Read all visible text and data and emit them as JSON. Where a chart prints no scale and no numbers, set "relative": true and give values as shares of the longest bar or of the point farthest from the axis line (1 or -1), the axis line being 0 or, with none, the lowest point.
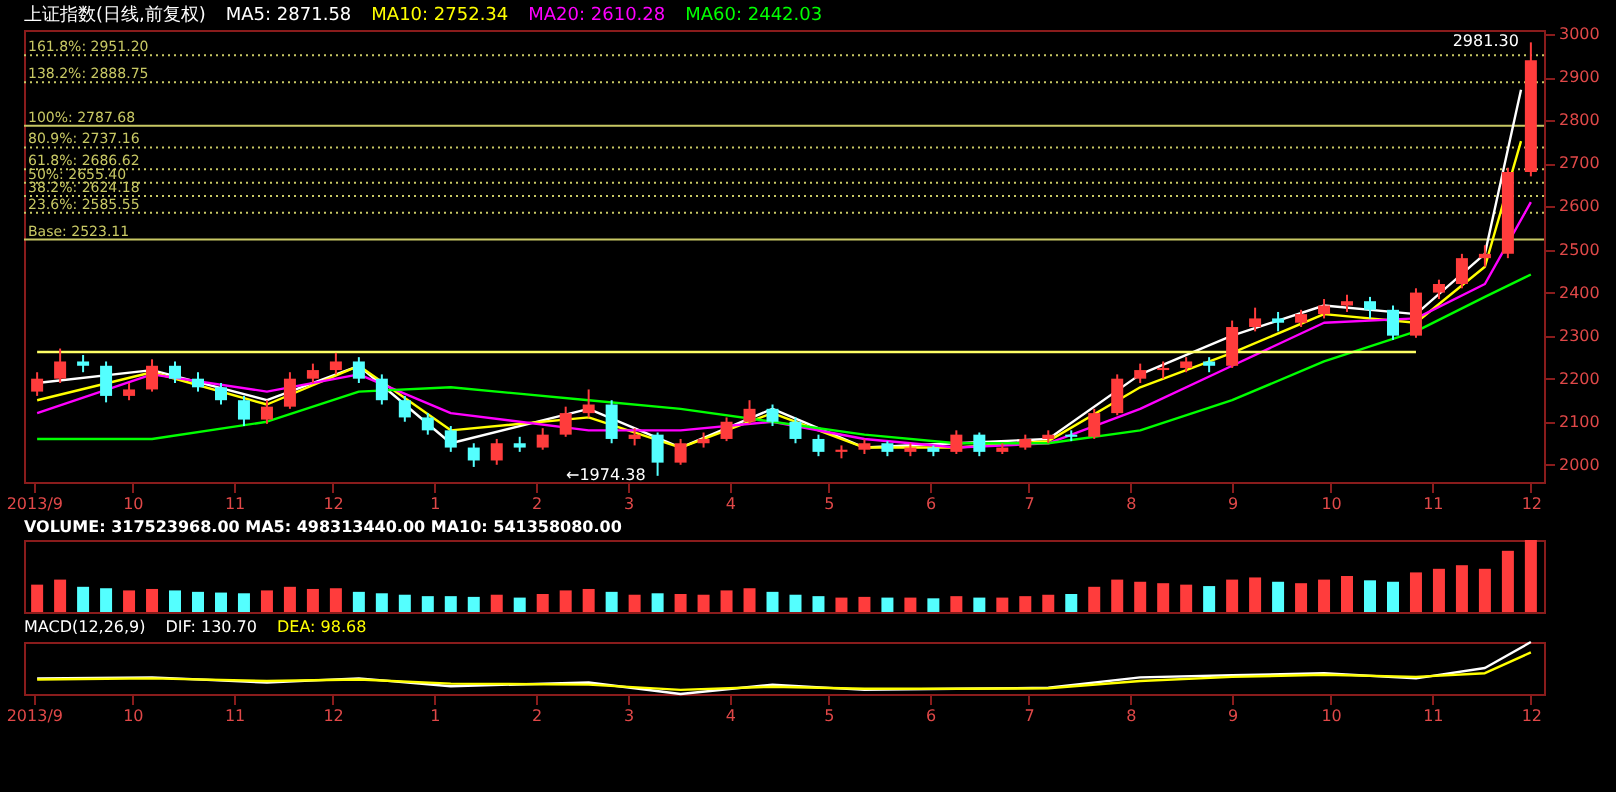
{
  "chart_data": [
    {
      "type": "candlestick",
      "title": "上证指数(日线,前复权)",
      "xlim": [
        "2013-08-29",
        "2014-12-05"
      ],
      "ylim": [
        1960,
        3010
      ],
      "yticks": [
        2000,
        2100,
        2200,
        2300,
        2400,
        2500,
        2600,
        2700,
        2800,
        2900,
        3000
      ],
      "xticks": [
        {
          "value": "2013-09-01",
          "label": "2013/9"
        },
        {
          "value": "2013-10-01",
          "label": "10"
        },
        {
          "value": "2013-11-01",
          "label": "11"
        },
        {
          "value": "2013-12-01",
          "label": "12"
        },
        {
          "value": "2014-01-01",
          "label": "1"
        },
        {
          "value": "2014-02-01",
          "label": "2"
        },
        {
          "value": "2014-03-01",
          "label": "3"
        },
        {
          "value": "2014-04-01",
          "label": "4"
        },
        {
          "value": "2014-05-01",
          "label": "5"
        },
        {
          "value": "2014-06-01",
          "label": "6"
        },
        {
          "value": "2014-07-01",
          "label": "7"
        },
        {
          "value": "2014-08-01",
          "label": "8"
        },
        {
          "value": "2014-09-01",
          "label": "9"
        },
        {
          "value": "2014-10-01",
          "label": "10"
        },
        {
          "value": "2014-11-01",
          "label": "11"
        },
        {
          "value": "2014-12-01",
          "label": "12"
        }
      ],
      "x": [
        "2013-09-02",
        "2013-09-09",
        "2013-09-16",
        "2013-09-23",
        "2013-09-30",
        "2013-10-07",
        "2013-10-14",
        "2013-10-21",
        "2013-10-28",
        "2013-11-04",
        "2013-11-11",
        "2013-11-18",
        "2013-11-25",
        "2013-12-02",
        "2013-12-09",
        "2013-12-16",
        "2013-12-23",
        "2013-12-30",
        "2014-01-06",
        "2014-01-13",
        "2014-01-20",
        "2014-01-27",
        "2014-02-03",
        "2014-02-10",
        "2014-02-17",
        "2014-02-24",
        "2014-03-03",
        "2014-03-10",
        "2014-03-17",
        "2014-03-24",
        "2014-03-31",
        "2014-04-07",
        "2014-04-14",
        "2014-04-21",
        "2014-04-28",
        "2014-05-05",
        "2014-05-12",
        "2014-05-19",
        "2014-05-26",
        "2014-06-02",
        "2014-06-09",
        "2014-06-16",
        "2014-06-23",
        "2014-06-30",
        "2014-07-07",
        "2014-07-14",
        "2014-07-21",
        "2014-07-28",
        "2014-08-04",
        "2014-08-11",
        "2014-08-18",
        "2014-08-25",
        "2014-09-01",
        "2014-09-08",
        "2014-09-15",
        "2014-09-22",
        "2014-09-29",
        "2014-10-06",
        "2014-10-13",
        "2014-10-20",
        "2014-10-27",
        "2014-11-03",
        "2014-11-10",
        "2014-11-17",
        "2014-11-24",
        "2014-12-01"
      ],
      "ohlc": [
        [
          2170,
          2215,
          2160,
          2200
        ],
        [
          2200,
          2270,
          2190,
          2240
        ],
        [
          2240,
          2255,
          2215,
          2230
        ],
        [
          2230,
          2240,
          2145,
          2160
        ],
        [
          2160,
          2190,
          2150,
          2175
        ],
        [
          2175,
          2245,
          2170,
          2230
        ],
        [
          2230,
          2240,
          2190,
          2200
        ],
        [
          2200,
          2215,
          2170,
          2180
        ],
        [
          2180,
          2190,
          2140,
          2150
        ],
        [
          2150,
          2160,
          2090,
          2105
        ],
        [
          2105,
          2150,
          2095,
          2135
        ],
        [
          2135,
          2215,
          2130,
          2200
        ],
        [
          2200,
          2235,
          2190,
          2220
        ],
        [
          2220,
          2260,
          2210,
          2240
        ],
        [
          2240,
          2250,
          2190,
          2200
        ],
        [
          2200,
          2210,
          2140,
          2150
        ],
        [
          2150,
          2160,
          2100,
          2110
        ],
        [
          2110,
          2120,
          2070,
          2080
        ],
        [
          2080,
          2090,
          2030,
          2040
        ],
        [
          2040,
          2050,
          1995,
          2010
        ],
        [
          2010,
          2060,
          2000,
          2050
        ],
        [
          2050,
          2065,
          2030,
          2040
        ],
        [
          2040,
          2085,
          2035,
          2070
        ],
        [
          2070,
          2135,
          2065,
          2120
        ],
        [
          2120,
          2175,
          2110,
          2140
        ],
        [
          2140,
          2150,
          2050,
          2060
        ],
        [
          2060,
          2085,
          2045,
          2070
        ],
        [
          2070,
          2075,
          1974.38,
          2005
        ],
        [
          2005,
          2060,
          2000,
          2050
        ],
        [
          2050,
          2075,
          2040,
          2060
        ],
        [
          2060,
          2110,
          2055,
          2100
        ],
        [
          2100,
          2150,
          2095,
          2130
        ],
        [
          2130,
          2140,
          2090,
          2100
        ],
        [
          2100,
          2110,
          2050,
          2060
        ],
        [
          2060,
          2070,
          2020,
          2030
        ],
        [
          2030,
          2045,
          2015,
          2035
        ],
        [
          2035,
          2060,
          2025,
          2050
        ],
        [
          2050,
          2055,
          2020,
          2030
        ],
        [
          2030,
          2050,
          2020,
          2040
        ],
        [
          2040,
          2045,
          2020,
          2030
        ],
        [
          2030,
          2080,
          2025,
          2070
        ],
        [
          2070,
          2075,
          2020,
          2030
        ],
        [
          2030,
          2050,
          2025,
          2040
        ],
        [
          2040,
          2070,
          2035,
          2060
        ],
        [
          2060,
          2080,
          2050,
          2070
        ],
        [
          2070,
          2080,
          2055,
          2065
        ],
        [
          2065,
          2130,
          2060,
          2120
        ],
        [
          2120,
          2210,
          2115,
          2200
        ],
        [
          2200,
          2235,
          2190,
          2220
        ],
        [
          2220,
          2240,
          2200,
          2225
        ],
        [
          2225,
          2250,
          2215,
          2240
        ],
        [
          2240,
          2250,
          2215,
          2230
        ],
        [
          2230,
          2335,
          2225,
          2320
        ],
        [
          2320,
          2365,
          2310,
          2340
        ],
        [
          2340,
          2355,
          2310,
          2330
        ],
        [
          2330,
          2360,
          2320,
          2350
        ],
        [
          2350,
          2385,
          2340,
          2370
        ],
        [
          2370,
          2395,
          2355,
          2380
        ],
        [
          2380,
          2390,
          2340,
          2360
        ],
        [
          2360,
          2370,
          2290,
          2300
        ],
        [
          2300,
          2410,
          2295,
          2400
        ],
        [
          2400,
          2430,
          2385,
          2420
        ],
        [
          2420,
          2490,
          2410,
          2480
        ],
        [
          2480,
          2510,
          2460,
          2490
        ],
        [
          2490,
          2690,
          2480,
          2680
        ],
        [
          2680,
          2981.3,
          2670,
          2940
        ]
      ],
      "colors": [
        "#ff3c3c",
        "#ff3c3c",
        "#54ffff",
        "#54ffff",
        "#ff3c3c",
        "#ff3c3c",
        "#54ffff",
        "#54ffff",
        "#54ffff",
        "#54ffff",
        "#ff3c3c",
        "#ff3c3c",
        "#ff3c3c",
        "#ff3c3c",
        "#54ffff",
        "#54ffff",
        "#54ffff",
        "#54ffff",
        "#54ffff",
        "#54ffff",
        "#ff3c3c",
        "#54ffff",
        "#ff3c3c",
        "#ff3c3c",
        "#ff3c3c",
        "#54ffff",
        "#ff3c3c",
        "#54ffff",
        "#ff3c3c",
        "#ff3c3c",
        "#ff3c3c",
        "#ff3c3c",
        "#54ffff",
        "#54ffff",
        "#54ffff",
        "#ff3c3c",
        "#ff3c3c",
        "#54ffff",
        "#ff3c3c",
        "#54ffff",
        "#ff3c3c",
        "#54ffff",
        "#ff3c3c",
        "#ff3c3c",
        "#ff3c3c",
        "#54ffff",
        "#ff3c3c",
        "#ff3c3c",
        "#ff3c3c",
        "#ff3c3c",
        "#ff3c3c",
        "#54ffff",
        "#ff3c3c",
        "#ff3c3c",
        "#54ffff",
        "#ff3c3c",
        "#ff3c3c",
        "#ff3c3c",
        "#54ffff",
        "#54ffff",
        "#ff3c3c",
        "#ff3c3c",
        "#ff3c3c",
        "#ff3c3c",
        "#ff3c3c",
        "#ff3c3c"
      ],
      "series": [
        {
          "type": "line",
          "name": "MA5: 2871.58",
          "color": "#ffffff",
          "x": [
            "2013-09-02",
            "2013-10-07",
            "2013-11-11",
            "2013-12-09",
            "2014-01-06",
            "2014-02-17",
            "2014-03-17",
            "2014-04-14",
            "2014-05-12",
            "2014-06-09",
            "2014-07-07",
            "2014-08-04",
            "2014-09-01",
            "2014-09-29",
            "2014-10-27",
            "2014-11-17",
            "2014-11-28"
          ],
          "values": [
            2190,
            2220,
            2150,
            2230,
            2050,
            2130,
            2040,
            2130,
            2040,
            2050,
            2060,
            2210,
            2300,
            2370,
            2350,
            2490,
            2871
          ]
        },
        {
          "type": "line",
          "name": "MA10: 2752.34",
          "color": "#ffff00",
          "x": [
            "2013-09-02",
            "2013-10-07",
            "2013-11-11",
            "2013-12-09",
            "2014-01-06",
            "2014-02-17",
            "2014-03-17",
            "2014-04-14",
            "2014-05-12",
            "2014-06-09",
            "2014-07-07",
            "2014-08-04",
            "2014-09-01",
            "2014-09-29",
            "2014-10-27",
            "2014-11-17",
            "2014-11-28"
          ],
          "values": [
            2150,
            2215,
            2140,
            2230,
            2080,
            2110,
            2040,
            2120,
            2040,
            2040,
            2055,
            2180,
            2260,
            2350,
            2330,
            2460,
            2752
          ]
        },
        {
          "type": "line",
          "name": "MA20: 2610.28",
          "color": "#ff00ff",
          "x": [
            "2013-09-02",
            "2013-10-07",
            "2013-11-11",
            "2013-12-09",
            "2014-01-06",
            "2014-02-17",
            "2014-03-17",
            "2014-04-14",
            "2014-05-12",
            "2014-06-09",
            "2014-07-07",
            "2014-08-04",
            "2014-09-01",
            "2014-09-29",
            "2014-10-27",
            "2014-11-17",
            "2014-12-01"
          ],
          "values": [
            2120,
            2210,
            2170,
            2210,
            2120,
            2080,
            2080,
            2100,
            2060,
            2040,
            2050,
            2130,
            2230,
            2330,
            2340,
            2420,
            2610
          ]
        },
        {
          "type": "line",
          "name": "MA60: 2442.03",
          "color": "#00ff00",
          "x": [
            "2013-09-02",
            "2013-10-07",
            "2013-11-11",
            "2013-12-09",
            "2014-01-06",
            "2014-02-17",
            "2014-03-17",
            "2014-04-14",
            "2014-05-12",
            "2014-06-09",
            "2014-07-07",
            "2014-08-04",
            "2014-09-01",
            "2014-09-29",
            "2014-10-27",
            "2014-11-17",
            "2014-12-01"
          ],
          "values": [
            2060,
            2060,
            2100,
            2170,
            2180,
            2150,
            2130,
            2100,
            2070,
            2050,
            2050,
            2080,
            2150,
            2240,
            2310,
            2390,
            2442
          ]
        },
        {
          "type": "line",
          "color": "#ffff66",
          "x": [
            "2013-09-02",
            "2014-10-27"
          ],
          "values": [
            2262,
            2262
          ]
        }
      ],
      "ref_lines": [
        {
          "axis": "y",
          "value": 2951.2,
          "label": "161.8%: 2951.20",
          "color": "#c8c864",
          "line_style": "dotted"
        },
        {
          "axis": "y",
          "value": 2888.75,
          "label": "138.2%: 2888.75",
          "color": "#c8c864",
          "line_style": "dotted"
        },
        {
          "axis": "y",
          "value": 2787.68,
          "label": "100%: 2787.68",
          "color": "#c8c864",
          "line_style": "solid"
        },
        {
          "axis": "y",
          "value": 2737.16,
          "label": "80.9%: 2737.16",
          "color": "#c8c864",
          "line_style": "dotted"
        },
        {
          "axis": "y",
          "value": 2686.62,
          "label": "61.8%: 2686.62",
          "color": "#c8c864",
          "line_style": "dotted"
        },
        {
          "axis": "y",
          "value": 2655.4,
          "label": "50%: 2655.40",
          "color": "#c8c864",
          "line_style": "dotted"
        },
        {
          "axis": "y",
          "value": 2624.18,
          "label": "38.2%: 2624.18",
          "color": "#c8c864",
          "line_style": "dotted"
        },
        {
          "axis": "y",
          "value": 2585.55,
          "label": "23.6%: 2585.55",
          "color": "#c8c864",
          "line_style": "dotted"
        },
        {
          "axis": "y",
          "value": 2523.11,
          "label": "Base: 2523.11",
          "color": "#c8c864",
          "line_style": "solid"
        }
      ],
      "annotations": [
        {
          "text": "2981.30",
          "x": "2014-12-01",
          "y": 2981.3
        },
        {
          "text": "←1974.38",
          "x": "2014-03-10",
          "y": 1974.38
        }
      ]
    },
    {
      "type": "bar",
      "relative": true,
      "title": "VOLUME: 317523968.00  MA5: 498313440.00  MA10: 541358080.00",
      "tick_labels": false,
      "xlim": [
        "2013-08-29",
        "2014-12-05"
      ],
      "x": [
        "2013-09-02",
        "2013-09-09",
        "2013-09-16",
        "2013-09-23",
        "2013-09-30",
        "2013-10-07",
        "2013-10-14",
        "2013-10-21",
        "2013-10-28",
        "2013-11-04",
        "2013-11-11",
        "2013-11-18",
        "2013-11-25",
        "2013-12-02",
        "2013-12-09",
        "2013-12-16",
        "2013-12-23",
        "2013-12-30",
        "2014-01-06",
        "2014-01-13",
        "2014-01-20",
        "2014-01-27",
        "2014-02-03",
        "2014-02-10",
        "2014-02-17",
        "2014-02-24",
        "2014-03-03",
        "2014-03-10",
        "2014-03-17",
        "2014-03-24",
        "2014-03-31",
        "2014-04-07",
        "2014-04-14",
        "2014-04-21",
        "2014-04-28",
        "2014-05-05",
        "2014-05-12",
        "2014-05-19",
        "2014-05-26",
        "2014-06-02",
        "2014-06-09",
        "2014-06-16",
        "2014-06-23",
        "2014-06-30",
        "2014-07-07",
        "2014-07-14",
        "2014-07-21",
        "2014-07-28",
        "2014-08-04",
        "2014-08-11",
        "2014-08-18",
        "2014-08-25",
        "2014-09-01",
        "2014-09-08",
        "2014-09-15",
        "2014-09-22",
        "2014-09-29",
        "2014-10-06",
        "2014-10-13",
        "2014-10-20",
        "2014-10-27",
        "2014-11-03",
        "2014-11-10",
        "2014-11-17",
        "2014-11-24",
        "2014-12-01"
      ],
      "values": [
        0.38,
        0.45,
        0.35,
        0.33,
        0.3,
        0.32,
        0.3,
        0.28,
        0.27,
        0.26,
        0.3,
        0.35,
        0.32,
        0.33,
        0.28,
        0.26,
        0.24,
        0.22,
        0.22,
        0.21,
        0.24,
        0.2,
        0.25,
        0.3,
        0.32,
        0.28,
        0.24,
        0.26,
        0.25,
        0.24,
        0.3,
        0.33,
        0.28,
        0.24,
        0.22,
        0.2,
        0.21,
        0.2,
        0.2,
        0.19,
        0.22,
        0.2,
        0.2,
        0.22,
        0.24,
        0.25,
        0.35,
        0.45,
        0.42,
        0.4,
        0.38,
        0.36,
        0.45,
        0.48,
        0.42,
        0.4,
        0.45,
        0.5,
        0.44,
        0.42,
        0.55,
        0.6,
        0.65,
        0.6,
        0.85,
        1
      ],
      "colors": [
        "#ff3c3c",
        "#ff3c3c",
        "#54ffff",
        "#54ffff",
        "#ff3c3c",
        "#ff3c3c",
        "#54ffff",
        "#54ffff",
        "#54ffff",
        "#54ffff",
        "#ff3c3c",
        "#ff3c3c",
        "#ff3c3c",
        "#ff3c3c",
        "#54ffff",
        "#54ffff",
        "#54ffff",
        "#54ffff",
        "#54ffff",
        "#54ffff",
        "#ff3c3c",
        "#54ffff",
        "#ff3c3c",
        "#ff3c3c",
        "#ff3c3c",
        "#54ffff",
        "#ff3c3c",
        "#54ffff",
        "#ff3c3c",
        "#ff3c3c",
        "#ff3c3c",
        "#ff3c3c",
        "#54ffff",
        "#54ffff",
        "#54ffff",
        "#ff3c3c",
        "#ff3c3c",
        "#54ffff",
        "#ff3c3c",
        "#54ffff",
        "#ff3c3c",
        "#54ffff",
        "#ff3c3c",
        "#ff3c3c",
        "#ff3c3c",
        "#54ffff",
        "#ff3c3c",
        "#ff3c3c",
        "#ff3c3c",
        "#ff3c3c",
        "#ff3c3c",
        "#54ffff",
        "#ff3c3c",
        "#ff3c3c",
        "#54ffff",
        "#ff3c3c",
        "#ff3c3c",
        "#ff3c3c",
        "#54ffff",
        "#54ffff",
        "#ff3c3c",
        "#ff3c3c",
        "#ff3c3c",
        "#ff3c3c",
        "#ff3c3c",
        "#ff3c3c"
      ]
    },
    {
      "type": "line",
      "relative": true,
      "title": "MACD(12,26,9)",
      "tick_labels": "x",
      "xlim": [
        "2013-08-29",
        "2014-12-05"
      ],
      "xticks": [
        {
          "value": "2013-09-01",
          "label": "2013/9"
        },
        {
          "value": "2013-10-01",
          "label": "10"
        },
        {
          "value": "2013-11-01",
          "label": "11"
        },
        {
          "value": "2013-12-01",
          "label": "12"
        },
        {
          "value": "2014-01-01",
          "label": "1"
        },
        {
          "value": "2014-02-01",
          "label": "2"
        },
        {
          "value": "2014-03-01",
          "label": "3"
        },
        {
          "value": "2014-04-01",
          "label": "4"
        },
        {
          "value": "2014-05-01",
          "label": "5"
        },
        {
          "value": "2014-06-01",
          "label": "6"
        },
        {
          "value": "2014-07-01",
          "label": "7"
        },
        {
          "value": "2014-08-01",
          "label": "8"
        },
        {
          "value": "2014-09-01",
          "label": "9"
        },
        {
          "value": "2014-10-01",
          "label": "10"
        },
        {
          "value": "2014-11-01",
          "label": "11"
        },
        {
          "value": "2014-12-01",
          "label": "12"
        }
      ],
      "series": [
        {
          "name": "DIF: 130.70",
          "color": "#ffffff",
          "x": [
            "2013-09-02",
            "2013-10-07",
            "2013-11-11",
            "2013-12-09",
            "2014-01-06",
            "2014-02-17",
            "2014-03-17",
            "2014-04-14",
            "2014-05-12",
            "2014-06-09",
            "2014-07-07",
            "2014-08-04",
            "2014-09-01",
            "2014-09-29",
            "2014-10-27",
            "2014-11-17",
            "2014-12-01"
          ],
          "values": [
            0.3,
            0.32,
            0.22,
            0.3,
            0.15,
            0.22,
            0,
            0.18,
            0.08,
            0.1,
            0.12,
            0.32,
            0.36,
            0.4,
            0.3,
            0.5,
            1
          ]
        },
        {
          "name": "DEA: 98.68",
          "color": "#ffff00",
          "x": [
            "2013-09-02",
            "2013-10-07",
            "2013-11-11",
            "2013-12-09",
            "2014-01-06",
            "2014-02-17",
            "2014-03-17",
            "2014-04-14",
            "2014-05-12",
            "2014-06-09",
            "2014-07-07",
            "2014-08-04",
            "2014-09-01",
            "2014-09-29",
            "2014-10-27",
            "2014-11-17",
            "2014-12-01"
          ],
          "values": [
            0.28,
            0.3,
            0.25,
            0.28,
            0.2,
            0.18,
            0.08,
            0.14,
            0.1,
            0.1,
            0.11,
            0.25,
            0.33,
            0.37,
            0.33,
            0.4,
            0.8
          ]
        }
      ]
    }
  ]
}
